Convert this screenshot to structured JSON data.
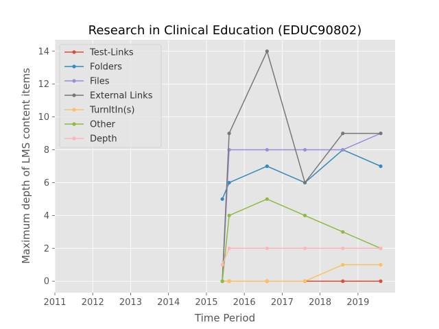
{
  "chart_data": {
    "type": "line",
    "title": "Research in Clinical Education (EDUC90802)",
    "xlabel": "Time Period",
    "ylabel": "Maximum depth of LMS content items",
    "xlim": [
      2011.0,
      2019.98
    ],
    "ylim": [
      -0.7,
      14.7
    ],
    "xticks": [
      2011,
      2012,
      2013,
      2014,
      2015,
      2016,
      2017,
      2018,
      2019
    ],
    "yticks": [
      0,
      2,
      4,
      6,
      8,
      10,
      12,
      14
    ],
    "grid": true,
    "legend_position": "top-left",
    "background": "#e5e5e5",
    "series": [
      {
        "name": "Test-Links",
        "color": "#e24a33",
        "x": [
          2015.42,
          2015.6,
          2016.6,
          2017.6,
          2018.6,
          2019.6
        ],
        "y": [
          0,
          0,
          0,
          0,
          0,
          0
        ]
      },
      {
        "name": "Folders",
        "color": "#348abd",
        "x": [
          2015.42,
          2015.6,
          2016.6,
          2017.6,
          2018.6,
          2019.6
        ],
        "y": [
          5,
          6,
          7,
          6,
          8,
          7
        ]
      },
      {
        "name": "Files",
        "color": "#988ed5",
        "x": [
          2015.42,
          2015.6,
          2016.6,
          2017.6,
          2018.6,
          2019.6
        ],
        "y": [
          0,
          8,
          8,
          8,
          8,
          9
        ]
      },
      {
        "name": "External Links",
        "color": "#777777",
        "x": [
          2015.42,
          2015.6,
          2016.6,
          2017.6,
          2018.6,
          2019.6
        ],
        "y": [
          0,
          9,
          14,
          6,
          9,
          9
        ]
      },
      {
        "name": "TurnItIn(s)",
        "color": "#fbc15e",
        "x": [
          2015.42,
          2015.6,
          2016.6,
          2017.6,
          2018.6,
          2019.6
        ],
        "y": [
          0,
          0,
          0,
          0,
          1,
          1
        ]
      },
      {
        "name": "Other",
        "color": "#8eba42",
        "x": [
          2015.42,
          2015.6,
          2016.6,
          2017.6,
          2018.6,
          2019.6
        ],
        "y": [
          0,
          4,
          5,
          4,
          3,
          2
        ]
      },
      {
        "name": "Depth",
        "color": "#ffb5b8",
        "x": [
          2015.42,
          2015.6,
          2016.6,
          2017.6,
          2018.6,
          2019.6
        ],
        "y": [
          1,
          2,
          2,
          2,
          2,
          2
        ]
      }
    ]
  }
}
